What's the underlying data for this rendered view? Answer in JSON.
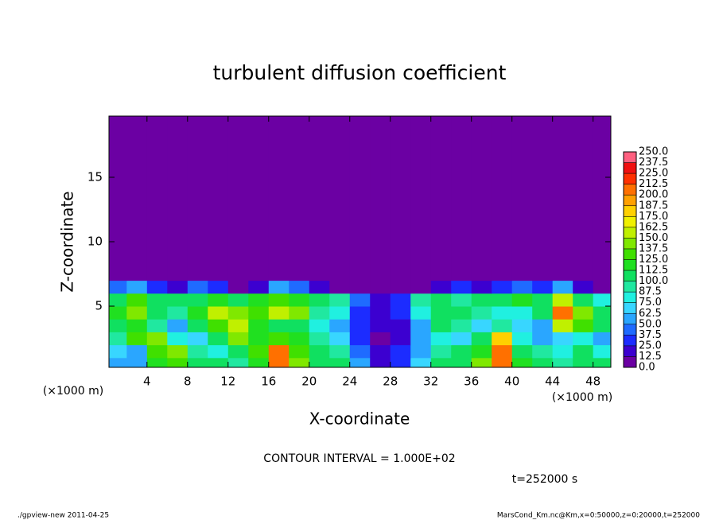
{
  "chart_data": {
    "type": "heatmap",
    "title": "turbulent diffusion coefficient",
    "x_label": "X-coordinate",
    "y_label": "Z-coordinate",
    "x_unit": "(×1000 m)",
    "y_unit": "(×1000 m)",
    "xlim": [
      0.25,
      49.75
    ],
    "ylim": [
      0.25,
      19.75
    ],
    "xticks": [
      4,
      8,
      12,
      16,
      20,
      24,
      28,
      32,
      36,
      40,
      44,
      48
    ],
    "yticks": [
      5,
      10,
      15
    ],
    "xbins": [
      0,
      2,
      4,
      6,
      8,
      10,
      12,
      14,
      16,
      18,
      20,
      22,
      24,
      26,
      28,
      30,
      32,
      34,
      36,
      38,
      40,
      42,
      44,
      46,
      48,
      50
    ],
    "ybins": [
      0,
      1,
      2,
      3,
      4,
      5,
      6,
      7,
      20
    ],
    "values": [
      [
        60,
        50,
        120,
        130,
        110,
        100,
        90,
        120,
        210,
        140,
        110,
        100,
        60,
        20,
        30,
        70,
        100,
        110,
        140,
        210,
        120,
        100,
        90,
        110,
        100
      ],
      [
        70,
        60,
        130,
        140,
        90,
        80,
        110,
        130,
        200,
        130,
        100,
        90,
        40,
        15,
        25,
        60,
        90,
        100,
        120,
        200,
        110,
        90,
        80,
        100,
        80
      ],
      [
        90,
        130,
        140,
        80,
        70,
        110,
        140,
        120,
        130,
        120,
        90,
        70,
        30,
        10,
        20,
        50,
        80,
        70,
        110,
        180,
        80,
        60,
        70,
        80,
        60
      ],
      [
        110,
        120,
        90,
        60,
        100,
        130,
        150,
        120,
        110,
        110,
        80,
        60,
        30,
        15,
        20,
        60,
        110,
        90,
        70,
        90,
        70,
        60,
        150,
        130,
        110
      ],
      [
        120,
        140,
        100,
        90,
        120,
        150,
        140,
        130,
        160,
        140,
        90,
        80,
        30,
        20,
        30,
        80,
        110,
        100,
        90,
        80,
        80,
        100,
        200,
        140,
        100
      ],
      [
        110,
        130,
        110,
        100,
        110,
        120,
        110,
        120,
        130,
        120,
        100,
        90,
        40,
        20,
        30,
        90,
        100,
        90,
        100,
        110,
        120,
        110,
        160,
        110,
        80
      ],
      [
        40,
        60,
        30,
        20,
        40,
        30,
        10,
        20,
        60,
        40,
        20,
        10,
        0,
        0,
        0,
        10,
        20,
        30,
        20,
        30,
        40,
        30,
        60,
        20,
        10
      ],
      [
        0,
        0,
        0,
        0,
        0,
        0,
        0,
        0,
        0,
        0,
        0,
        0,
        0,
        0,
        0,
        0,
        0,
        0,
        0,
        0,
        0,
        0,
        0,
        0,
        0
      ]
    ],
    "levels": [
      {
        "value": 0,
        "label": "0.0"
      },
      {
        "value": 12.5,
        "label": "12.5"
      },
      {
        "value": 25,
        "label": "25.0"
      },
      {
        "value": 37.5,
        "label": "37.5"
      },
      {
        "value": 50,
        "label": "50.0"
      },
      {
        "value": 62.5,
        "label": "62.5"
      },
      {
        "value": 75,
        "label": "75.0"
      },
      {
        "value": 87.5,
        "label": "87.5"
      },
      {
        "value": 100,
        "label": "100.0"
      },
      {
        "value": 112.5,
        "label": "112.5"
      },
      {
        "value": 125,
        "label": "125.0"
      },
      {
        "value": 137.5,
        "label": "137.5"
      },
      {
        "value": 150,
        "label": "150.0"
      },
      {
        "value": 162.5,
        "label": "162.5"
      },
      {
        "value": 175,
        "label": "175.0"
      },
      {
        "value": 187.5,
        "label": "187.5"
      },
      {
        "value": 200,
        "label": "200.0"
      },
      {
        "value": 212.5,
        "label": "212.5"
      },
      {
        "value": 225,
        "label": "225.0"
      },
      {
        "value": 237.5,
        "label": "237.5"
      },
      {
        "value": 250,
        "label": "250.0"
      }
    ],
    "colors": [
      "#6b00a3",
      "#3c00d0",
      "#1c2cff",
      "#1f6bff",
      "#2aa6ff",
      "#38d6ff",
      "#20f0e0",
      "#20e8a0",
      "#10e060",
      "#20e020",
      "#40e000",
      "#80e800",
      "#c0f000",
      "#f0f000",
      "#ffd000",
      "#ffa000",
      "#ff7000",
      "#ff3000",
      "#f01010",
      "#ff6080"
    ],
    "contour_note": "CONTOUR INTERVAL = 1.000E+02",
    "time_label": "t=252000 s",
    "footer_left": "./gpview-new  2011-04-25",
    "footer_right": "MarsCond_Km.nc@Km,x=0:50000,z=0:20000,t=252000"
  }
}
